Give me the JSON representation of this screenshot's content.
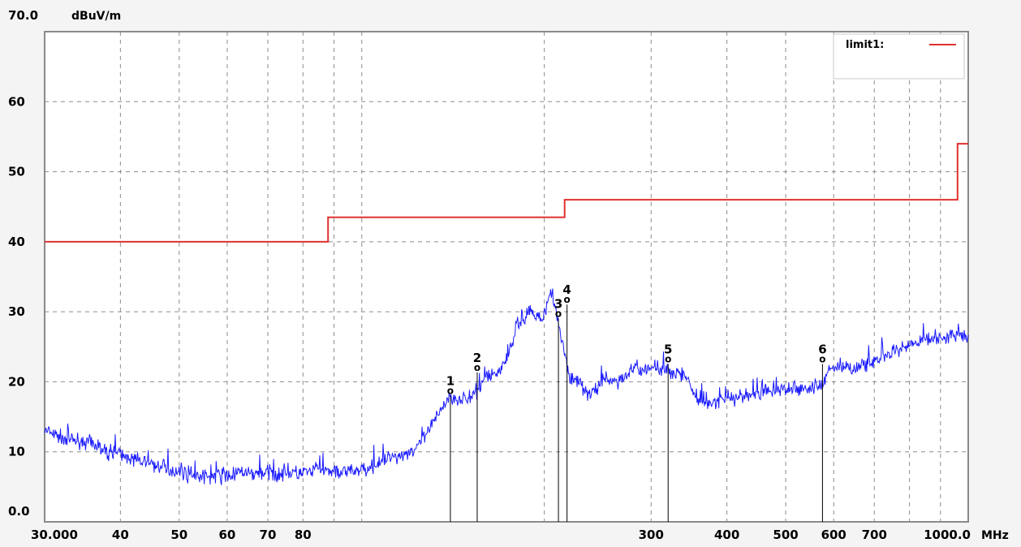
{
  "chart_data": {
    "type": "line",
    "x_scale": "log",
    "xlim": [
      30,
      1000
    ],
    "ylim": [
      0,
      70
    ],
    "grid": true,
    "legend_position": "top-right",
    "y_unit": "dBuV/m",
    "x_unit": "MHz",
    "y_ticks": [
      {
        "value": 0,
        "label": "0.0"
      },
      {
        "value": 10,
        "label": "10"
      },
      {
        "value": 20,
        "label": "20"
      },
      {
        "value": 30,
        "label": "30"
      },
      {
        "value": 40,
        "label": "40"
      },
      {
        "value": 50,
        "label": "50"
      },
      {
        "value": 60,
        "label": "60"
      },
      {
        "value": 70,
        "label": "70.0"
      }
    ],
    "x_ticks": [
      {
        "value": 30,
        "label": "30.000"
      },
      {
        "value": 40,
        "label": "40"
      },
      {
        "value": 50,
        "label": "50"
      },
      {
        "value": 60,
        "label": "60"
      },
      {
        "value": 70,
        "label": "70"
      },
      {
        "value": 80,
        "label": "80"
      },
      {
        "value": 300,
        "label": "300"
      },
      {
        "value": 400,
        "label": "400"
      },
      {
        "value": 500,
        "label": "500"
      },
      {
        "value": 600,
        "label": "600"
      },
      {
        "value": 700,
        "label": "700"
      },
      {
        "value": 1000,
        "label": "1000.0"
      }
    ],
    "x_gridlines": [
      40,
      50,
      60,
      70,
      80,
      90,
      100,
      200,
      300,
      400,
      500,
      600,
      700,
      800,
      900
    ],
    "series": [
      {
        "name": "limit1:",
        "color": "#e03030",
        "step": true,
        "x": [
          30,
          88,
          88,
          216,
          216,
          960,
          960,
          1000
        ],
        "values": [
          40,
          40,
          43.5,
          43.5,
          46,
          46,
          54,
          54
        ]
      },
      {
        "color": "#1a1aff",
        "noise": true,
        "x": [
          30,
          32,
          35,
          38,
          42,
          46,
          50,
          55,
          60,
          65,
          70,
          75,
          80,
          85,
          90,
          95,
          100,
          105,
          110,
          115,
          120,
          125,
          130,
          135,
          140,
          145,
          150,
          155,
          160,
          165,
          170,
          175,
          180,
          185,
          190,
          195,
          200,
          205,
          210,
          215,
          220,
          224,
          228,
          232,
          236,
          240,
          250,
          260,
          270,
          280,
          290,
          300,
          310,
          320,
          330,
          340,
          360,
          380,
          400,
          430,
          460,
          500,
          540,
          570,
          590,
          610,
          650,
          700,
          750,
          800,
          850,
          900,
          950,
          1000
        ],
        "values": [
          13,
          12,
          11.5,
          10,
          9,
          8,
          7,
          6.5,
          6.5,
          7,
          7,
          7,
          7,
          7.5,
          7,
          7,
          7.5,
          8,
          9,
          9.5,
          10,
          11,
          13.5,
          16,
          18,
          17.5,
          17.5,
          18.5,
          21,
          21,
          22,
          24,
          28,
          29,
          30,
          29,
          30,
          32.5,
          29,
          25,
          21,
          20,
          20,
          19,
          18,
          18.5,
          20,
          20,
          20.5,
          22,
          21.5,
          22,
          22,
          21.5,
          21.5,
          21,
          17,
          17,
          17.5,
          18,
          18.5,
          19,
          19,
          19,
          22,
          22,
          22,
          23,
          24,
          25,
          26,
          26.5,
          26.5,
          26.5
        ]
      }
    ],
    "markers": [
      {
        "label": "1",
        "symbol": "o",
        "x": 140,
        "y": 18.5
      },
      {
        "label": "2",
        "symbol": "o",
        "x": 155,
        "y": 21.8
      },
      {
        "label": "3",
        "symbol": "o",
        "x": 211,
        "y": 29.5
      },
      {
        "label": "4",
        "symbol": "o",
        "x": 218,
        "y": 31.5
      },
      {
        "label": "5",
        "symbol": "o",
        "x": 320,
        "y": 23
      },
      {
        "label": "6",
        "symbol": "o",
        "x": 575,
        "y": 23
      }
    ]
  }
}
